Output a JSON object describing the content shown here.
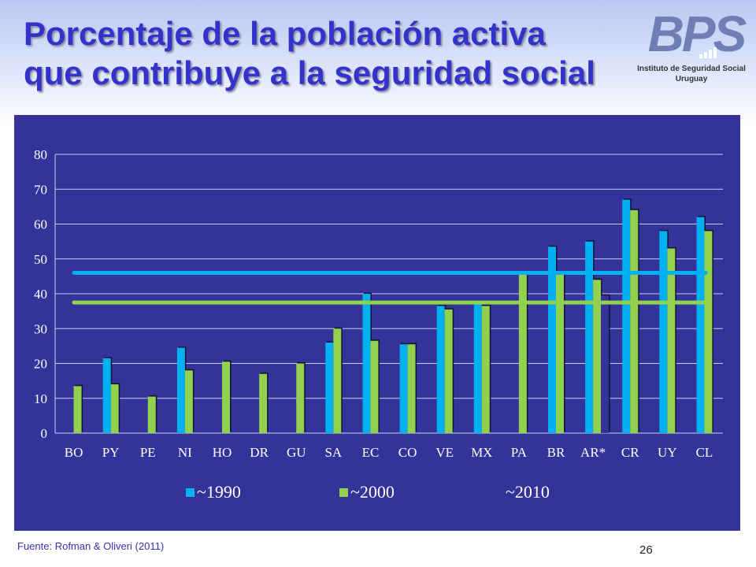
{
  "slide": {
    "title_line1": "Porcentaje de la población activa",
    "title_line2": "que contribuye a la seguridad social",
    "source": "Fuente: Rofman & Oliveri (2011)",
    "page_number": "26"
  },
  "logo": {
    "mark": "BPS",
    "line1": "Instituto de Seguridad Social",
    "line2": "Uruguay",
    "color": "#6f7fb5"
  },
  "colors": {
    "panel": "#333399",
    "s1990": "#00b0f0",
    "s2000": "#92d050",
    "s2010": "#333399",
    "grid": "#d0d0e8"
  },
  "chart_data": {
    "type": "bar",
    "categories": [
      "BO",
      "PY",
      "PE",
      "NI",
      "HO",
      "DR",
      "GU",
      "SA",
      "EC",
      "CO",
      "VE",
      "MX",
      "PA",
      "BR",
      "AR*",
      "CR",
      "UY",
      "CL"
    ],
    "ylim": [
      0,
      80
    ],
    "yticks": [
      "0",
      "10",
      "20",
      "30",
      "40",
      "50",
      "60",
      "70",
      "80"
    ],
    "grid": true,
    "legend_position": "bottom",
    "series": [
      {
        "name": "~1990",
        "values": [
          null,
          21.5,
          null,
          24.5,
          null,
          null,
          null,
          26,
          40,
          25.5,
          36.5,
          37.5,
          null,
          53.5,
          55,
          67,
          58,
          62
        ]
      },
      {
        "name": "~2000",
        "values": [
          13.5,
          14,
          10.5,
          18,
          20.5,
          17,
          20,
          30,
          26.5,
          25.5,
          35.5,
          36.5,
          45.5,
          45.5,
          44,
          64,
          53,
          58
        ]
      },
      {
        "name": "~2010",
        "values": [
          null,
          null,
          null,
          null,
          null,
          null,
          null,
          null,
          null,
          null,
          null,
          null,
          null,
          null,
          39.5,
          null,
          null,
          null
        ]
      }
    ],
    "reference_lines": [
      {
        "value": 46,
        "color": "#00b0f0"
      },
      {
        "value": 37.5,
        "color": "#92d050"
      }
    ]
  }
}
